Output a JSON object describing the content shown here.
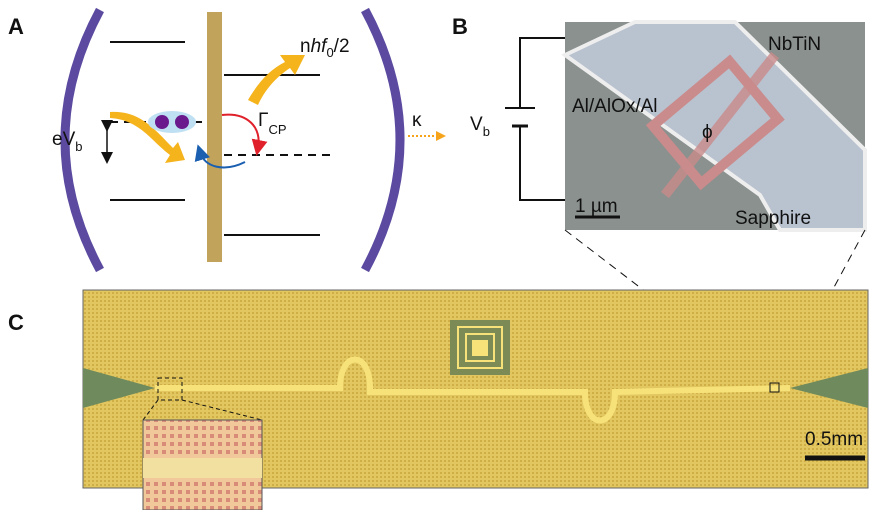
{
  "panel_labels": [
    "A",
    "B",
    "C"
  ],
  "panel_a": {
    "photon_energy": [
      "n",
      "h",
      "f",
      "0",
      "/2"
    ],
    "bias_energy": [
      "eV",
      "b"
    ],
    "rate": [
      "Γ",
      "CP"
    ],
    "loss": "κ"
  },
  "panel_b": {
    "voltage": [
      "V",
      "b"
    ],
    "junction_label": "Al/AlOx/Al",
    "lead_label": "NbTiN",
    "phase": "ϕ",
    "scale_bar": "1 µm",
    "substrate": "Sapphire"
  },
  "panel_c": {
    "scale_bar": "0.5mm"
  }
}
